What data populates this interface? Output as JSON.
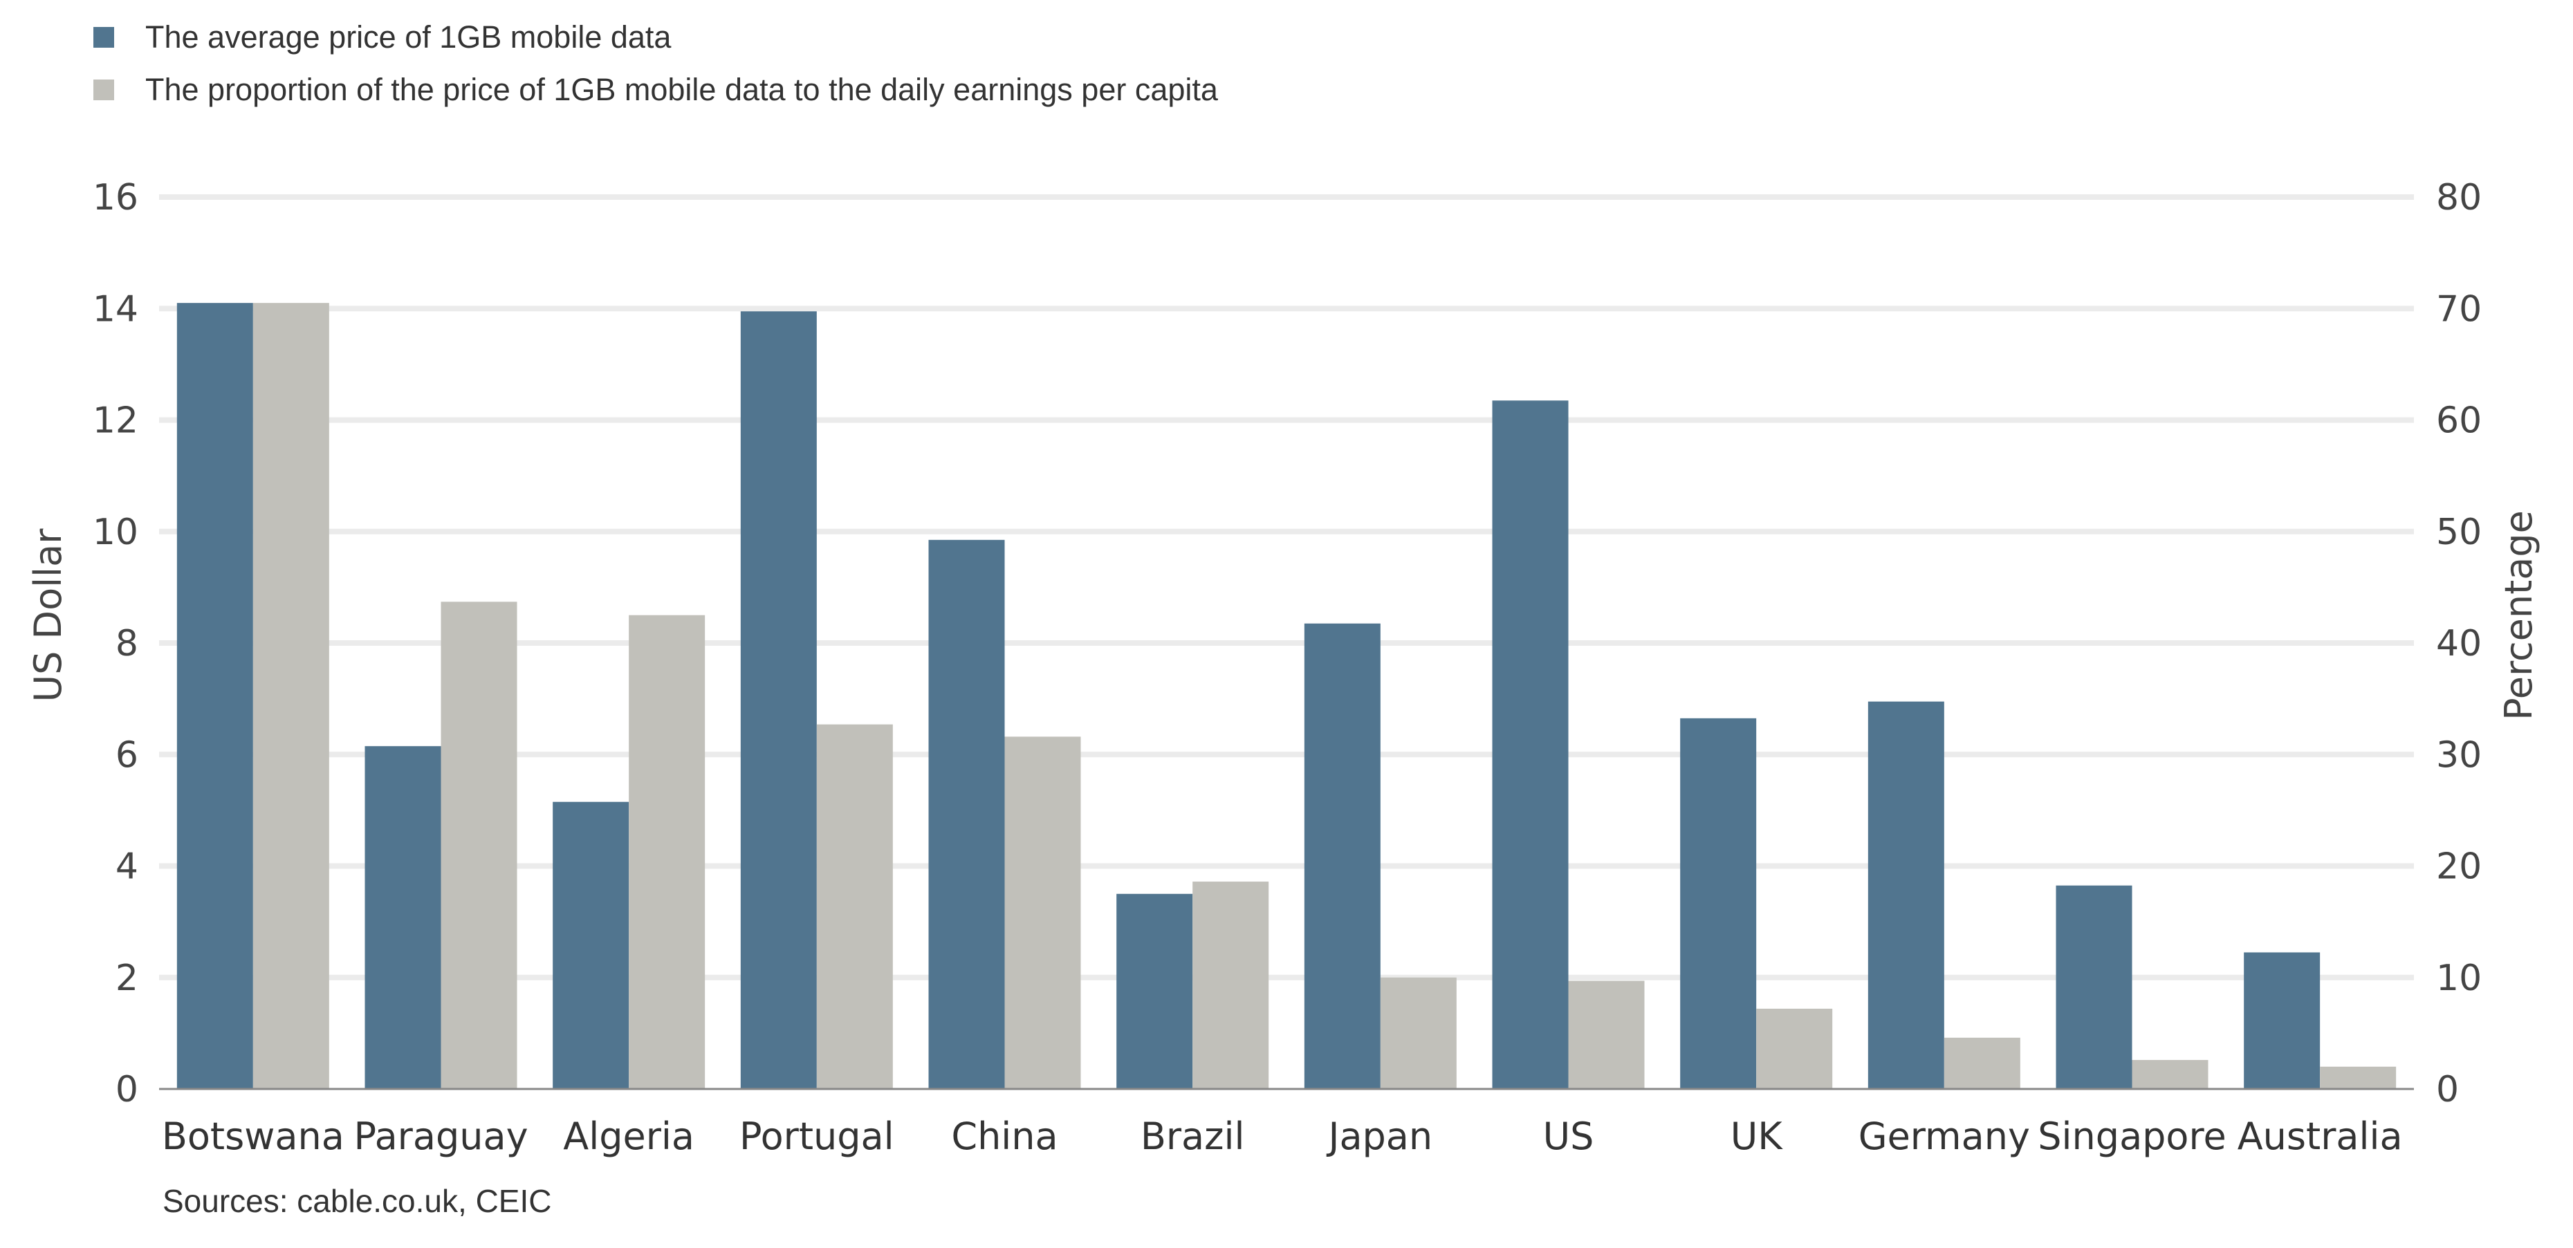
{
  "chart_data": {
    "type": "bar",
    "categories": [
      "Botswana",
      "Paraguay",
      "Algeria",
      "Portugal",
      "China",
      "Brazil",
      "Japan",
      "US",
      "UK",
      "Germany",
      "Singapore",
      "Australia"
    ],
    "series": [
      {
        "name": "The average price of 1GB mobile data",
        "axis": "left",
        "color": "#51758f",
        "values": [
          14.1,
          6.15,
          5.15,
          13.95,
          9.85,
          3.5,
          8.35,
          12.35,
          6.65,
          6.95,
          3.65,
          2.45
        ]
      },
      {
        "name": "The proportion of the price of 1GB mobile data to the daily earnings per capita",
        "axis": "right",
        "color": "#c1c0ba",
        "values": [
          70.5,
          43.7,
          42.5,
          32.7,
          31.6,
          18.6,
          10.0,
          9.7,
          7.2,
          4.6,
          2.6,
          2.0
        ]
      }
    ],
    "ylabel": "US Dollar",
    "ylabel_right": "Percentage",
    "ylim": [
      0,
      16
    ],
    "ylim_right": [
      0,
      80
    ],
    "yticks": [
      "0",
      "2",
      "4",
      "6",
      "8",
      "10",
      "12",
      "14",
      "16"
    ],
    "yticks_right": [
      "0",
      "10",
      "20",
      "30",
      "40",
      "50",
      "60",
      "70",
      "80"
    ],
    "grid": true,
    "legend_position": "top-left"
  },
  "legend": {
    "series1_label": "The average price of 1GB mobile data",
    "series2_label": "The proportion of the price of 1GB mobile data to the daily earnings per capita"
  },
  "source": "Sources:  cable.co.uk,  CEIC",
  "colors": {
    "series1": "#51758f",
    "series2": "#c1c0ba",
    "grid": "#ebebeb",
    "axis": "#888888"
  }
}
